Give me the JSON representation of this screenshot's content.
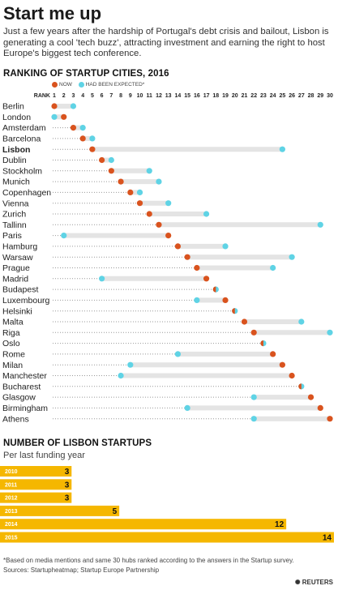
{
  "title": "Start me up",
  "intro": "Just a few years after the hardship of Portugal's debt crisis and bailout, Lisbon is generating a cool 'tech buzz', attracting investment and earning the right to host Europe's biggest tech conference.",
  "colors": {
    "now": "#d9531e",
    "expected": "#5fd3e5",
    "bar": "#f5b700",
    "track": "#e4e4e4",
    "dots": "#999999"
  },
  "chart_data": [
    {
      "type": "scatter",
      "title": "RANKING OF STARTUP CITIES, 2016",
      "axis_label": "RANK",
      "xlim": [
        1,
        30
      ],
      "ticks": [
        1,
        2,
        3,
        4,
        5,
        6,
        7,
        8,
        9,
        10,
        11,
        12,
        13,
        14,
        15,
        16,
        17,
        18,
        19,
        20,
        21,
        22,
        23,
        24,
        25,
        26,
        27,
        28,
        29,
        30
      ],
      "legend": {
        "now": "NOW",
        "expected": "HAD BEEN EXPECTED*"
      },
      "highlight": "Lisbon",
      "cities": [
        {
          "name": "Berlin",
          "now": 1,
          "expected": 3
        },
        {
          "name": "London",
          "now": 2,
          "expected": 1
        },
        {
          "name": "Amsterdam",
          "now": 3,
          "expected": 4
        },
        {
          "name": "Barcelona",
          "now": 4,
          "expected": 5
        },
        {
          "name": "Lisbon",
          "now": 5,
          "expected": 25
        },
        {
          "name": "Dublin",
          "now": 6,
          "expected": 7
        },
        {
          "name": "Stockholm",
          "now": 7,
          "expected": 11
        },
        {
          "name": "Munich",
          "now": 8,
          "expected": 12
        },
        {
          "name": "Copenhagen",
          "now": 9,
          "expected": 10
        },
        {
          "name": "Vienna",
          "now": 10,
          "expected": 13
        },
        {
          "name": "Zurich",
          "now": 11,
          "expected": 17
        },
        {
          "name": "Tallinn",
          "now": 12,
          "expected": 29
        },
        {
          "name": "Paris",
          "now": 13,
          "expected": 2
        },
        {
          "name": "Hamburg",
          "now": 14,
          "expected": 19
        },
        {
          "name": "Warsaw",
          "now": 15,
          "expected": 26
        },
        {
          "name": "Prague",
          "now": 16,
          "expected": 24
        },
        {
          "name": "Madrid",
          "now": 17,
          "expected": 6
        },
        {
          "name": "Budapest",
          "now": 18,
          "expected": 18
        },
        {
          "name": "Luxembourg",
          "now": 19,
          "expected": 16
        },
        {
          "name": "Helsinki",
          "now": 20,
          "expected": 20
        },
        {
          "name": "Malta",
          "now": 21,
          "expected": 27
        },
        {
          "name": "Riga",
          "now": 22,
          "expected": 30
        },
        {
          "name": "Oslo",
          "now": 23,
          "expected": 23
        },
        {
          "name": "Rome",
          "now": 24,
          "expected": 14
        },
        {
          "name": "Milan",
          "now": 25,
          "expected": 9
        },
        {
          "name": "Manchester",
          "now": 26,
          "expected": 8
        },
        {
          "name": "Bucharest",
          "now": 27,
          "expected": 27
        },
        {
          "name": "Glasgow",
          "now": 28,
          "expected": 22
        },
        {
          "name": "Birmingham",
          "now": 29,
          "expected": 15
        },
        {
          "name": "Athens",
          "now": 30,
          "expected": 22
        }
      ]
    },
    {
      "type": "bar",
      "title": "NUMBER OF LISBON STARTUPS",
      "subtitle": "Per last funding year",
      "categories": [
        "2010",
        "2011",
        "2012",
        "2013",
        "2014",
        "2015"
      ],
      "values": [
        3,
        3,
        3,
        5,
        12,
        14
      ],
      "xlim": [
        0,
        14
      ]
    }
  ],
  "footnote": "*Based on media mentions and same 30 hubs ranked according to the answers in the Startup survey.",
  "sources": "Sources: Startupheatmap; Startup Europe Partnership",
  "logo": "REUTERS"
}
